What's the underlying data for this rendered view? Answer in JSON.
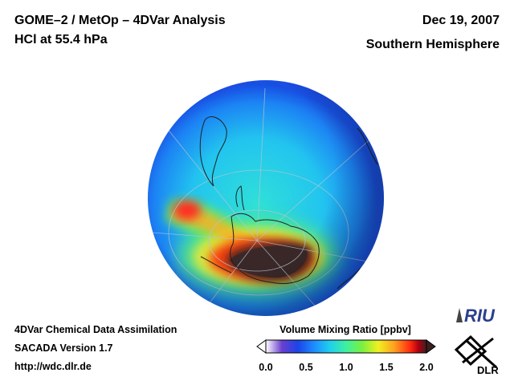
{
  "header": {
    "title_line1": "GOME–2 / MetOp – 4DVar Analysis",
    "title_line2": "HCl at 55.4 hPa",
    "date": "Dec 19, 2007",
    "region": "Southern Hemisphere"
  },
  "footer": {
    "line1": "4DVar Chemical Data Assimilation",
    "line2": "SACADA Version 1.7",
    "line3": "http://wdc.dlr.de"
  },
  "colorbar": {
    "title": "Volume Mixing Ratio [ppbv]",
    "ticks": [
      "0.0",
      "0.5",
      "1.0",
      "1.5",
      "2.0"
    ],
    "range": [
      0.0,
      2.0
    ],
    "colors": [
      "#ffffff",
      "#6a3fd0",
      "#1b44e8",
      "#1e8cff",
      "#1fd0ee",
      "#3ef0a0",
      "#7af040",
      "#f0f020",
      "#ffa020",
      "#ff2a10",
      "#b00010",
      "#3a2020"
    ]
  },
  "map": {
    "projection": "orthographic, south pole view",
    "icon": "globe-map"
  },
  "logos": {
    "riu": "RIU",
    "dlr": "DLR"
  }
}
